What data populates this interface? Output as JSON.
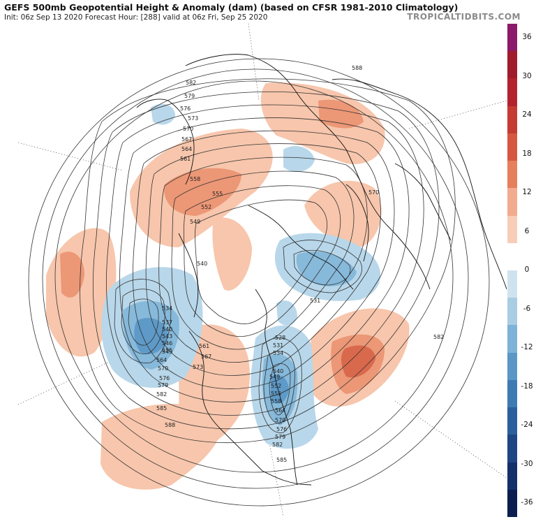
{
  "header": {
    "title": "GEFS 500mb Geopotential Height & Anomaly (dam) (based on CFSR 1981-2010 Climatology)",
    "subtitle": "Init: 06z Sep 13 2020   Forecast Hour: [288]   valid at 06z Fri, Sep 25 2020",
    "brand": "TROPICALTIDBITS.COM"
  },
  "colorbar": {
    "labels": [
      "36",
      "30",
      "24",
      "18",
      "12",
      "6",
      "0",
      "-6",
      "-12",
      "-18",
      "-24",
      "-30",
      "-36"
    ],
    "colors": [
      "#8b1a6b",
      "#a01c2c",
      "#b2232e",
      "#c53a33",
      "#d6573f",
      "#e57f5c",
      "#f2ab8e",
      "#f8cdb7",
      "#ffffff",
      "#cfe3ef",
      "#a9cde3",
      "#7db3d6",
      "#5a97c6",
      "#3e7bb4",
      "#2b5f9d",
      "#1e4684",
      "#14306b",
      "#0c1d50"
    ]
  },
  "map": {
    "contour_labels": [
      "582",
      "579",
      "576",
      "573",
      "570",
      "567",
      "564",
      "561",
      "558",
      "555",
      "552",
      "549",
      "540",
      "534",
      "537",
      "540",
      "543",
      "546",
      "549",
      "555",
      "564",
      "570",
      "576",
      "579",
      "582",
      "585",
      "588",
      "561",
      "567",
      "573",
      "528",
      "531",
      "534",
      "540",
      "549",
      "552",
      "555",
      "558",
      "564",
      "570",
      "576",
      "579",
      "582",
      "585",
      "588",
      "570",
      "582",
      "531"
    ]
  }
}
